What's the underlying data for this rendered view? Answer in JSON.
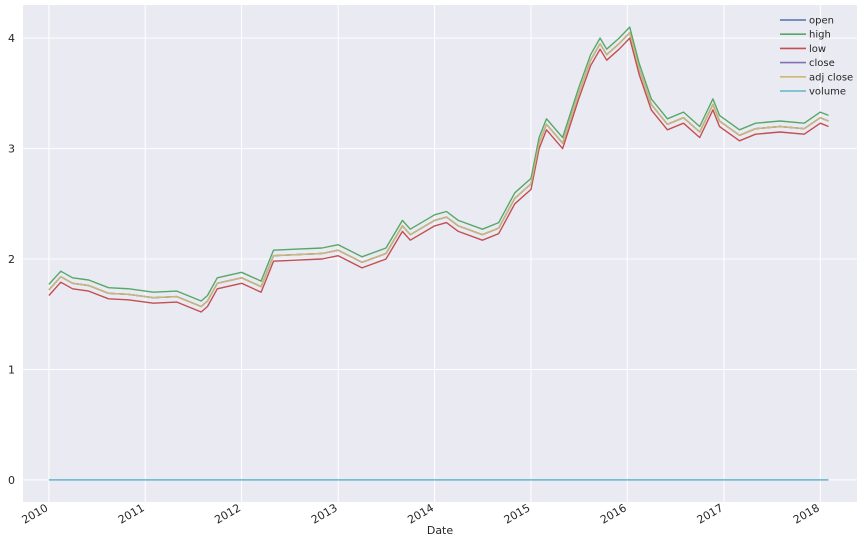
{
  "chart_data": {
    "type": "line",
    "title": "",
    "xlabel": "Date",
    "ylabel": "",
    "xlim": [
      "2009-09-25",
      "2018-05-20"
    ],
    "ylim": [
      -0.2,
      4.3
    ],
    "grid": true,
    "legend_position": "top-right",
    "x_ticks": [
      "2010",
      "2011",
      "2012",
      "2013",
      "2014",
      "2015",
      "2016",
      "2017",
      "2018"
    ],
    "y_ticks": [
      0,
      1,
      2,
      3,
      4
    ],
    "series": [
      {
        "name": "open",
        "color": "#4c72b0"
      },
      {
        "name": "high",
        "color": "#55a868"
      },
      {
        "name": "low",
        "color": "#c44e52"
      },
      {
        "name": "close",
        "color": "#8172b2"
      },
      {
        "name": "adj close",
        "color": "#ccb974"
      },
      {
        "name": "volume",
        "color": "#64b5cd"
      }
    ],
    "price_trace": {
      "x": [
        "2010-01-01",
        "2010-02-15",
        "2010-04-01",
        "2010-06-01",
        "2010-08-15",
        "2010-11-01",
        "2011-02-01",
        "2011-05-01",
        "2011-08-01",
        "2011-08-25",
        "2011-10-01",
        "2012-01-01",
        "2012-03-15",
        "2012-05-01",
        "2012-08-01",
        "2012-11-01",
        "2013-01-01",
        "2013-04-01",
        "2013-07-01",
        "2013-09-01",
        "2013-10-01",
        "2014-01-01",
        "2014-02-15",
        "2014-04-01",
        "2014-07-01",
        "2014-09-01",
        "2014-11-01",
        "2015-01-01",
        "2015-02-01",
        "2015-03-01",
        "2015-05-01",
        "2015-07-01",
        "2015-08-15",
        "2015-09-20",
        "2015-10-15",
        "2015-12-01",
        "2016-01-10",
        "2016-02-15",
        "2016-04-01",
        "2016-06-01",
        "2016-08-01",
        "2016-10-01",
        "2016-11-20",
        "2016-12-15",
        "2017-03-01",
        "2017-05-01",
        "2017-08-01",
        "2017-11-01",
        "2018-01-01",
        "2018-02-01"
      ],
      "adj_close": [
        1.72,
        1.84,
        1.78,
        1.76,
        1.69,
        1.68,
        1.65,
        1.66,
        1.57,
        1.62,
        1.78,
        1.83,
        1.75,
        2.03,
        2.04,
        2.05,
        2.08,
        1.97,
        2.05,
        2.3,
        2.22,
        2.35,
        2.38,
        2.3,
        2.22,
        2.28,
        2.55,
        2.68,
        3.05,
        3.22,
        3.05,
        3.5,
        3.8,
        3.95,
        3.85,
        3.95,
        4.05,
        3.72,
        3.4,
        3.22,
        3.28,
        3.15,
        3.4,
        3.25,
        3.12,
        3.18,
        3.2,
        3.18,
        3.28,
        3.25
      ],
      "high_offset": 0.05,
      "low_offset": -0.05
    },
    "volume_trace": {
      "x": [
        "2010-01-01",
        "2018-02-01"
      ],
      "y": [
        0,
        0
      ]
    }
  }
}
